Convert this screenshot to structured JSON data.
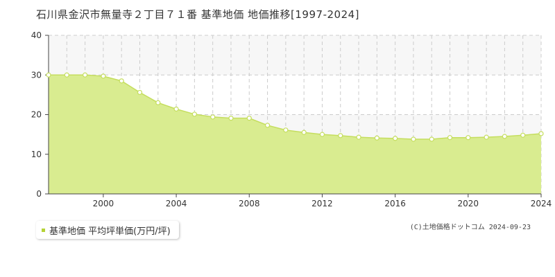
{
  "colors": {
    "fill": "#d9ec90",
    "line": "#c5de5e",
    "marker_fill": "#ffffff",
    "band": "#f7f7f7",
    "grid": "#cccccc",
    "axis": "#444444",
    "legend_marker": "#b5d236"
  },
  "legend": {
    "label": "基準地価 平均坪単価(万円/坪)"
  },
  "copyright": "(C)土地価格ドットコム 2024-09-23",
  "chart_data": {
    "type": "area",
    "title": "石川県金沢市無量寺２丁目７１番 基準地価 地価推移[1997-2024]",
    "xlabel": "",
    "ylabel": "",
    "xlim": [
      1997,
      2024
    ],
    "ylim": [
      0,
      40
    ],
    "x_ticks": [
      2000,
      2004,
      2008,
      2012,
      2016,
      2020,
      2024
    ],
    "y_ticks": [
      0,
      10,
      20,
      30,
      40
    ],
    "grid": true,
    "legend_position": "bottom-left",
    "series": [
      {
        "name": "基準地価 平均坪単価(万円/坪)",
        "x": [
          1997,
          1998,
          1999,
          2000,
          2001,
          2002,
          2003,
          2004,
          2005,
          2006,
          2007,
          2008,
          2009,
          2010,
          2011,
          2012,
          2013,
          2014,
          2015,
          2016,
          2017,
          2018,
          2019,
          2020,
          2021,
          2022,
          2023,
          2024
        ],
        "values": [
          30.0,
          30.0,
          30.0,
          29.7,
          28.5,
          25.6,
          23.0,
          21.4,
          20.1,
          19.4,
          19.1,
          19.1,
          17.3,
          16.1,
          15.5,
          15.0,
          14.7,
          14.3,
          14.1,
          14.0,
          13.8,
          13.8,
          14.2,
          14.2,
          14.3,
          14.5,
          14.8,
          15.2
        ]
      }
    ]
  }
}
